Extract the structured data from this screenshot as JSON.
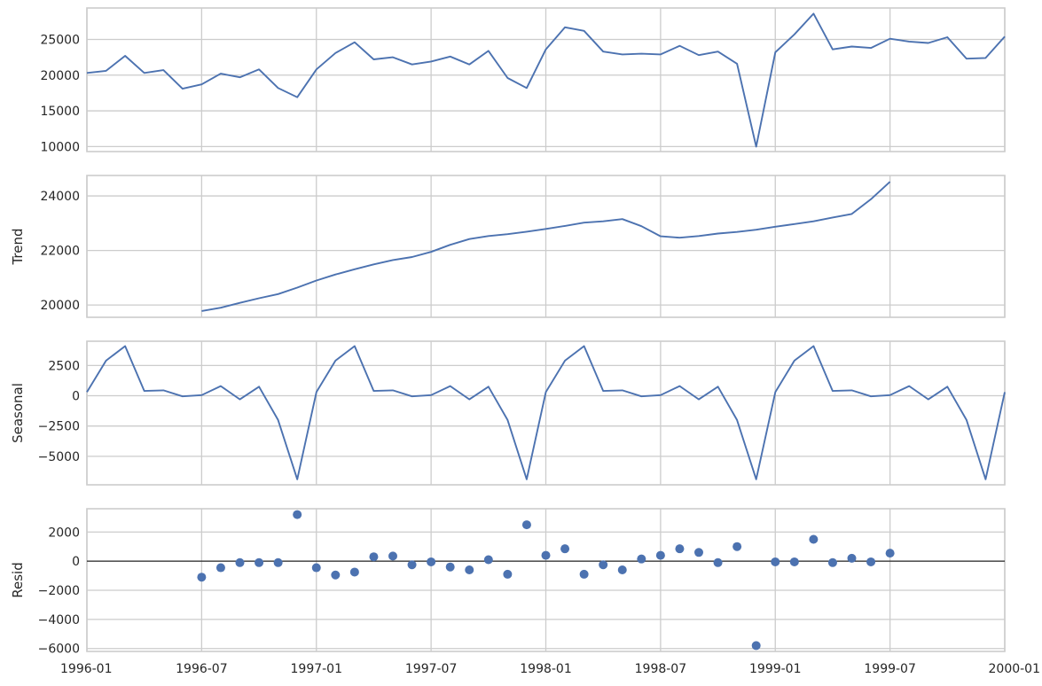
{
  "colors": {
    "series": "#4c72b0",
    "grid": "#cccccc",
    "text": "#262626"
  },
  "chart_data": [
    {
      "type": "line",
      "name": "observed",
      "ylabel": "",
      "yticks": [
        10000,
        15000,
        20000,
        25000
      ],
      "ylim": [
        9300,
        29400
      ],
      "xlim": [
        "1996-01",
        "2000-01"
      ],
      "x_start": "1996-01",
      "values": [
        20300,
        20600,
        22700,
        20300,
        20700,
        18100,
        18700,
        20200,
        19700,
        20800,
        18200,
        16900,
        20800,
        23100,
        24600,
        22200,
        22500,
        21500,
        21900,
        22600,
        21500,
        23400,
        19600,
        18200,
        23600,
        26700,
        26200,
        23300,
        22900,
        23000,
        22900,
        24100,
        22800,
        23300,
        21600,
        10000,
        23200,
        25700,
        28600,
        23600,
        24000,
        23800,
        25100,
        24700,
        24500,
        25300,
        22300,
        22400,
        25400
      ]
    },
    {
      "type": "line",
      "name": "trend",
      "ylabel": "Trend",
      "yticks": [
        20000,
        22000,
        24000
      ],
      "ylim": [
        19550,
        24750
      ],
      "xlim": [
        "1996-01",
        "2000-01"
      ],
      "x_start": "1996-07",
      "values": [
        19780,
        19900,
        20080,
        20250,
        20400,
        20640,
        20900,
        21120,
        21310,
        21490,
        21650,
        21760,
        21950,
        22210,
        22420,
        22530,
        22600,
        22690,
        22790,
        22900,
        23020,
        23070,
        23150,
        22890,
        22520,
        22470,
        22530,
        22620,
        22680,
        22760,
        22870,
        22970,
        23070,
        23210,
        23340,
        23880,
        24520
      ]
    },
    {
      "type": "line",
      "name": "seasonal",
      "ylabel": "Seasonal",
      "yticks": [
        -5000,
        -2500,
        0,
        2500
      ],
      "ylim": [
        -7350,
        4500
      ],
      "xlim": [
        "1996-01",
        "2000-01"
      ],
      "x_start": "1996-01",
      "values": [
        300,
        2900,
        4100,
        400,
        450,
        -50,
        50,
        800,
        -300,
        750,
        -2000,
        -6900,
        300,
        2900,
        4100,
        400,
        450,
        -50,
        50,
        800,
        -300,
        750,
        -2000,
        -6900,
        300,
        2900,
        4100,
        400,
        450,
        -50,
        50,
        800,
        -300,
        750,
        -2000,
        -6900,
        300,
        2900,
        4100,
        400,
        450,
        -50,
        50,
        800,
        -300,
        750,
        -2000,
        -6900,
        300
      ]
    },
    {
      "type": "scatter",
      "name": "resid",
      "ylabel": "Resid",
      "yticks": [
        -6000,
        -4000,
        -2000,
        0,
        2000
      ],
      "ylim": [
        -6200,
        3600
      ],
      "xlim": [
        "1996-01",
        "2000-01"
      ],
      "x_start": "1996-07",
      "zero_line": true,
      "values": [
        -1100,
        -450,
        -100,
        -100,
        -100,
        3200,
        -450,
        -950,
        -750,
        300,
        350,
        -250,
        -50,
        -400,
        -600,
        100,
        -900,
        2500,
        400,
        850,
        -900,
        -250,
        -600,
        150,
        400,
        850,
        600,
        -100,
        1000,
        -5800,
        -50,
        -50,
        1500,
        -100,
        200,
        -50,
        550
      ]
    }
  ],
  "x_tick_labels": [
    "1996-01",
    "1996-07",
    "1997-01",
    "1997-07",
    "1998-01",
    "1998-07",
    "1999-01",
    "1999-07",
    "2000-01"
  ]
}
